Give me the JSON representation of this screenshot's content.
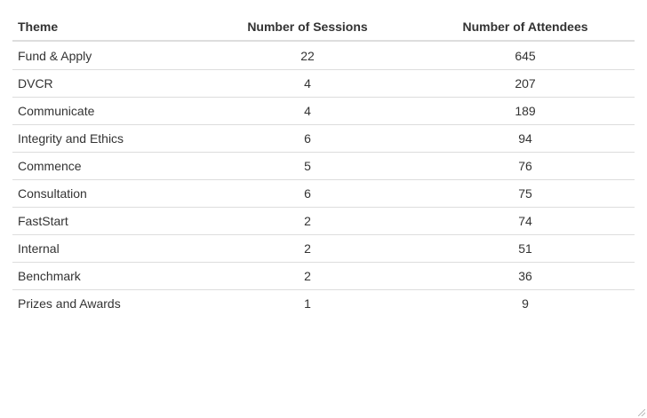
{
  "table": {
    "headers": {
      "theme": "Theme",
      "sessions": "Number of Sessions",
      "attendees": "Number of Attendees"
    },
    "rows": [
      {
        "theme": "Fund & Apply",
        "sessions": "22",
        "attendees": "645"
      },
      {
        "theme": "DVCR",
        "sessions": "4",
        "attendees": "207"
      },
      {
        "theme": "Communicate",
        "sessions": "4",
        "attendees": "189"
      },
      {
        "theme": "Integrity and Ethics",
        "sessions": "6",
        "attendees": "94"
      },
      {
        "theme": "Commence",
        "sessions": "5",
        "attendees": "76"
      },
      {
        "theme": "Consultation",
        "sessions": "6",
        "attendees": "75"
      },
      {
        "theme": "FastStart",
        "sessions": "2",
        "attendees": "74"
      },
      {
        "theme": "Internal",
        "sessions": "2",
        "attendees": "51"
      },
      {
        "theme": "Benchmark",
        "sessions": "2",
        "attendees": "36"
      },
      {
        "theme": "Prizes and Awards",
        "sessions": "1",
        "attendees": "9"
      }
    ]
  },
  "chart_data": {
    "type": "table",
    "columns": [
      "Theme",
      "Number of Sessions",
      "Number of Attendees"
    ],
    "rows": [
      [
        "Fund & Apply",
        22,
        645
      ],
      [
        "DVCR",
        4,
        207
      ],
      [
        "Communicate",
        4,
        189
      ],
      [
        "Integrity and Ethics",
        6,
        94
      ],
      [
        "Commence",
        5,
        76
      ],
      [
        "Consultation",
        6,
        75
      ],
      [
        "FastStart",
        2,
        74
      ],
      [
        "Internal",
        2,
        51
      ],
      [
        "Benchmark",
        2,
        36
      ],
      [
        "Prizes and Awards",
        1,
        9
      ]
    ]
  },
  "colors": {
    "text": "#333333",
    "border": "#dddddd"
  }
}
